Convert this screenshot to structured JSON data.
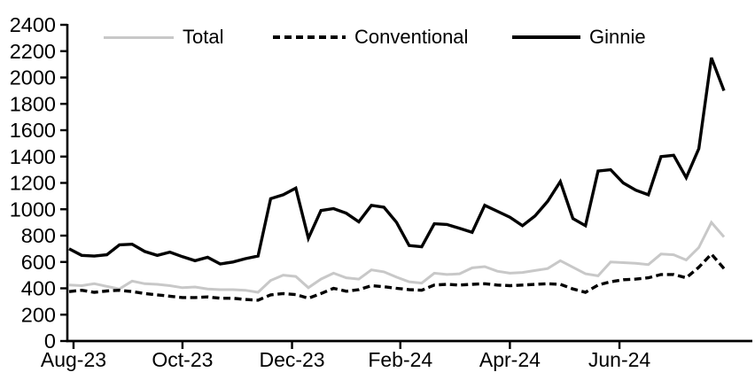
{
  "chart_data": {
    "type": "line",
    "title": "",
    "xlabel": "",
    "ylabel": "",
    "frequency": "weekly",
    "ylim": [
      0,
      2400
    ],
    "y_ticks": [
      0,
      200,
      400,
      600,
      800,
      1000,
      1200,
      1400,
      1600,
      1800,
      2000,
      2200,
      2400
    ],
    "x_tick_labels": [
      "Aug-23",
      "Oct-23",
      "Dec-23",
      "Feb-24",
      "Apr-24",
      "Jun-24"
    ],
    "x_tick_positions": [
      0.35,
      9.0,
      17.7,
      26.3,
      35.0,
      43.7
    ],
    "grid": false,
    "legend_position": "top",
    "series": [
      {
        "name": "Total",
        "style": "solid",
        "color": "#c8c8c8",
        "values": [
          425,
          420,
          435,
          415,
          395,
          455,
          435,
          430,
          420,
          405,
          410,
          395,
          390,
          390,
          385,
          370,
          460,
          500,
          490,
          405,
          470,
          515,
          480,
          470,
          540,
          525,
          485,
          450,
          440,
          515,
          505,
          510,
          555,
          565,
          530,
          515,
          520,
          535,
          550,
          610,
          560,
          510,
          495,
          600,
          595,
          590,
          580,
          660,
          655,
          615,
          710,
          900,
          790
        ]
      },
      {
        "name": "Conventional",
        "style": "dashed",
        "color": "#000000",
        "values": [
          375,
          385,
          370,
          380,
          385,
          375,
          360,
          350,
          340,
          330,
          330,
          335,
          325,
          325,
          315,
          310,
          350,
          360,
          352,
          325,
          360,
          400,
          378,
          390,
          420,
          412,
          400,
          390,
          385,
          425,
          430,
          425,
          430,
          435,
          425,
          420,
          425,
          430,
          435,
          430,
          395,
          370,
          425,
          450,
          465,
          470,
          480,
          505,
          505,
          480,
          560,
          660,
          550
        ]
      },
      {
        "name": "Ginnie",
        "style": "solid",
        "color": "#000000",
        "values": [
          700,
          650,
          645,
          655,
          730,
          735,
          680,
          650,
          675,
          640,
          610,
          635,
          585,
          600,
          625,
          645,
          1080,
          1110,
          1160,
          780,
          990,
          1005,
          970,
          905,
          1030,
          1015,
          900,
          725,
          715,
          890,
          885,
          855,
          825,
          1030,
          985,
          940,
          875,
          950,
          1060,
          1210,
          930,
          875,
          1290,
          1300,
          1200,
          1145,
          1110,
          1400,
          1410,
          1240,
          1460,
          2150,
          1900
        ]
      }
    ]
  },
  "legend": {
    "items": [
      {
        "label": "Total"
      },
      {
        "label": "Conventional"
      },
      {
        "label": "Ginnie"
      }
    ]
  }
}
